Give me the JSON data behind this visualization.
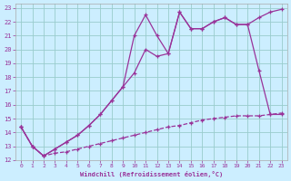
{
  "xlabel": "Windchill (Refroidissement éolien,°C)",
  "xlim": [
    -0.5,
    23.5
  ],
  "ylim": [
    12,
    23.3
  ],
  "xticks": [
    0,
    1,
    2,
    3,
    4,
    5,
    6,
    7,
    8,
    9,
    10,
    11,
    12,
    13,
    14,
    15,
    16,
    17,
    18,
    19,
    20,
    21,
    22,
    23
  ],
  "yticks": [
    12,
    13,
    14,
    15,
    16,
    17,
    18,
    19,
    20,
    21,
    22,
    23
  ],
  "bg_color": "#cceeff",
  "line_color": "#993399",
  "grid_color": "#99cccc",
  "line1_x": [
    0,
    1,
    2,
    3,
    4,
    5,
    6,
    7,
    8,
    9,
    10,
    11,
    12,
    13,
    14,
    15,
    16,
    17,
    18,
    19,
    20,
    21,
    22,
    23
  ],
  "line1_y": [
    14.4,
    13.0,
    12.3,
    12.8,
    13.3,
    13.8,
    14.5,
    15.3,
    16.3,
    17.3,
    18.3,
    20.0,
    19.5,
    19.7,
    22.7,
    21.5,
    21.5,
    22.0,
    22.3,
    21.8,
    21.8,
    18.5,
    15.3,
    15.3
  ],
  "line2_x": [
    0,
    1,
    2,
    3,
    4,
    5,
    6,
    7,
    8,
    9,
    10,
    11,
    12,
    13,
    14,
    15,
    16,
    17,
    18,
    19,
    20,
    21,
    22,
    23
  ],
  "line2_y": [
    14.4,
    13.0,
    12.3,
    12.8,
    13.3,
    13.8,
    14.5,
    15.3,
    16.3,
    17.3,
    21.0,
    22.5,
    21.0,
    19.7,
    22.7,
    21.5,
    21.5,
    22.0,
    22.3,
    21.8,
    21.8,
    22.3,
    22.7,
    22.9
  ],
  "line3_x": [
    0,
    1,
    2,
    3,
    4,
    5,
    6,
    7,
    8,
    9,
    10,
    11,
    12,
    13,
    14,
    15,
    16,
    17,
    18,
    19,
    20,
    21,
    22,
    23
  ],
  "line3_y": [
    14.4,
    13.0,
    12.3,
    12.5,
    12.6,
    12.8,
    13.0,
    13.2,
    13.4,
    13.6,
    13.8,
    14.0,
    14.2,
    14.4,
    14.5,
    14.7,
    14.9,
    15.0,
    15.1,
    15.2,
    15.2,
    15.2,
    15.3,
    15.4
  ]
}
